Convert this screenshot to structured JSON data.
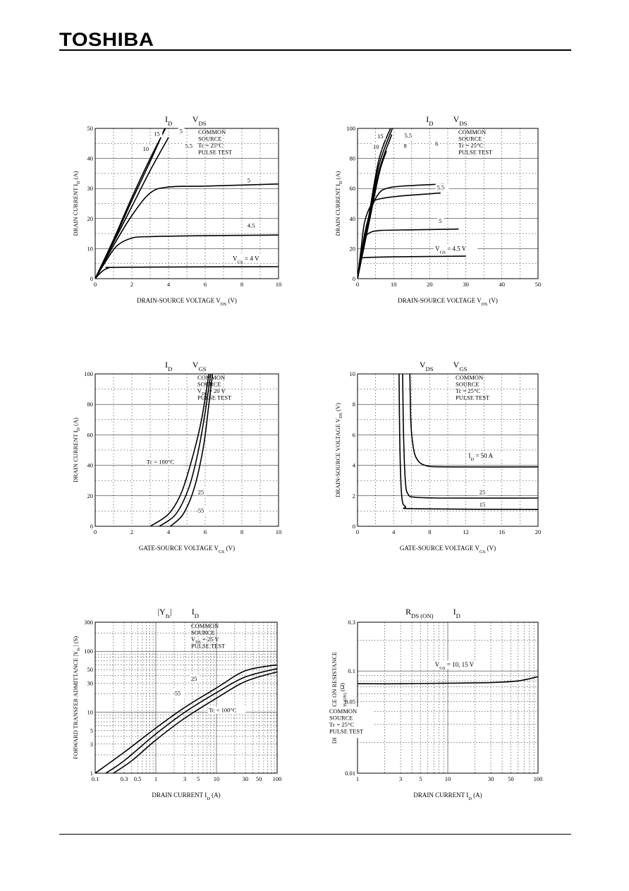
{
  "header": {
    "brand": "TOSHIBA"
  },
  "colors": {
    "ink": "#000000",
    "paper": "#ffffff"
  },
  "charts": [
    {
      "id": "c1",
      "title_left": "I",
      "title_left_sub": "D",
      "title_right": "V",
      "title_right_sub": "DS",
      "xlabel": "DRAIN-SOURCE  VOLTAGE   V",
      "xlabel_sub": "DS",
      "xlabel_unit": "(V)",
      "ylabel": "DRAIN CURRENT   I",
      "ylabel_sub": "D",
      "ylabel_unit": "(A)",
      "xticks": [
        0,
        2,
        4,
        6,
        8,
        10
      ],
      "yticks": [
        0,
        10,
        20,
        30,
        40,
        50
      ],
      "x_scale": "linear",
      "xlim": [
        0,
        10
      ],
      "y_scale": "linear",
      "ylim": [
        0,
        50
      ],
      "legend": [
        "COMMON",
        "SOURCE",
        "Tc = 25°C",
        "PULSE TEST"
      ],
      "series": [
        {
          "label": "10",
          "points": [
            [
              0,
              0
            ],
            [
              1,
              13
            ],
            [
              2,
              27
            ],
            [
              3,
              40
            ],
            [
              4,
              52
            ]
          ]
        },
        {
          "label": "5",
          "points": [
            [
              0,
              0
            ],
            [
              1,
              12.5
            ],
            [
              2,
              26
            ],
            [
              3,
              39
            ],
            [
              3.8,
              50
            ]
          ]
        },
        {
          "label": "5.5",
          "points": [
            [
              0,
              0
            ],
            [
              1,
              12
            ],
            [
              2,
              24
            ],
            [
              3,
              36
            ],
            [
              4,
              47
            ]
          ]
        },
        {
          "label": "5",
          "points": [
            [
              0,
              0
            ],
            [
              1,
              11
            ],
            [
              2,
              21
            ],
            [
              3,
              28.5
            ],
            [
              4,
              30.5
            ],
            [
              6,
              30.8
            ],
            [
              10,
              31.5
            ]
          ]
        },
        {
          "label": "4.5",
          "points": [
            [
              0,
              0
            ],
            [
              0.6,
              6
            ],
            [
              1.2,
              11
            ],
            [
              2,
              13.5
            ],
            [
              3,
              14
            ],
            [
              6,
              14.3
            ],
            [
              10,
              14.5
            ]
          ]
        },
        {
          "label": "V_GS = 4 V",
          "points": [
            [
              0,
              0
            ],
            [
              0.3,
              2
            ],
            [
              0.7,
              3.5
            ],
            [
              1.5,
              3.8
            ],
            [
              10,
              4
            ]
          ]
        }
      ],
      "annotations": [
        {
          "text": "15",
          "x": 3.2,
          "y": 47.5
        },
        {
          "text": "5",
          "x": 4.6,
          "y": 48.5
        },
        {
          "text": "10",
          "x": 2.6,
          "y": 42.5
        },
        {
          "text": "5.5",
          "x": 4.9,
          "y": 43.5
        },
        {
          "text": "5",
          "x": 8.3,
          "y": 32
        },
        {
          "text": "4.5",
          "x": 8.3,
          "y": 17
        },
        {
          "text": "V",
          "x": 7.5,
          "y": 6
        }
      ]
    },
    {
      "id": "c2",
      "title_left": "I",
      "title_left_sub": "D",
      "title_right": "V",
      "title_right_sub": "DS",
      "xlabel": "DRAIN-SOURCE  VOLTAGE   V",
      "xlabel_sub": "DS",
      "xlabel_unit": "(V)",
      "ylabel": "DRAIN CURRENT   I",
      "ylabel_sub": "D",
      "ylabel_unit": "(A)",
      "xticks": [
        0,
        10,
        20,
        30,
        40,
        50
      ],
      "yticks": [
        0,
        20,
        40,
        60,
        80,
        100
      ],
      "x_scale": "linear",
      "xlim": [
        0,
        50
      ],
      "y_scale": "linear",
      "ylim": [
        0,
        100
      ],
      "legend": [
        "COMMON",
        "SOURCE",
        "Tc = 25°C",
        "PULSE TEST"
      ],
      "series": [
        {
          "label": "15",
          "points": [
            [
              0,
              0
            ],
            [
              3,
              40
            ],
            [
              6,
              80
            ],
            [
              9.5,
              102
            ]
          ]
        },
        {
          "label": "5.5",
          "points": [
            [
              0,
              0
            ],
            [
              3,
              38
            ],
            [
              6,
              76
            ],
            [
              10,
              102
            ]
          ]
        },
        {
          "label": "10",
          "points": [
            [
              0,
              0
            ],
            [
              3,
              36
            ],
            [
              6,
              72
            ],
            [
              9.5,
              96
            ]
          ]
        },
        {
          "label": "8",
          "points": [
            [
              0,
              0
            ],
            [
              3,
              35
            ],
            [
              6,
              70
            ],
            [
              8,
              85
            ]
          ]
        },
        {
          "label": "6",
          "points": [
            [
              0,
              0
            ],
            [
              2,
              30
            ],
            [
              4,
              48
            ],
            [
              6,
              57
            ],
            [
              8,
              60
            ],
            [
              12,
              61.5
            ],
            [
              24,
              63
            ]
          ]
        },
        {
          "label": "5.5",
          "points": [
            [
              0,
              0
            ],
            [
              1,
              20
            ],
            [
              2,
              38
            ],
            [
              4,
              50
            ],
            [
              6,
              53
            ],
            [
              12,
              55
            ],
            [
              23,
              57
            ]
          ]
        },
        {
          "label": "5",
          "points": [
            [
              0,
              0
            ],
            [
              1,
              16
            ],
            [
              2,
              26
            ],
            [
              3,
              30
            ],
            [
              6,
              32
            ],
            [
              15,
              32.5
            ],
            [
              28,
              33
            ]
          ]
        },
        {
          "label": "V_GS = 4.5 V",
          "points": [
            [
              0,
              0
            ],
            [
              0.5,
              8
            ],
            [
              1,
              13
            ],
            [
              2,
              14
            ],
            [
              10,
              14.5
            ],
            [
              30,
              15
            ]
          ]
        }
      ],
      "annotations": [
        {
          "text": "15",
          "x": 5.5,
          "y": 93.5
        },
        {
          "text": "5.5",
          "x": 13,
          "y": 94
        },
        {
          "text": "10",
          "x": 4.3,
          "y": 86.5
        },
        {
          "text": "8",
          "x": 12.8,
          "y": 87
        },
        {
          "text": "6",
          "x": 21.5,
          "y": 88.5
        },
        {
          "text": "5.5",
          "x": 22,
          "y": 59.5
        },
        {
          "text": "5",
          "x": 22.5,
          "y": 37
        },
        {
          "text": "V",
          "x": 21.5,
          "y": 18.5
        }
      ]
    },
    {
      "id": "c3",
      "title_left": "I",
      "title_left_sub": "D",
      "title_right": "V",
      "title_right_sub": "GS",
      "xlabel": "GATE-SOURCE  VOLTAGE   V",
      "xlabel_sub": "GS",
      "xlabel_unit": "(V)",
      "ylabel": "DRAIN CURRENT   I",
      "ylabel_sub": "D",
      "ylabel_unit": "(A)",
      "xticks": [
        0,
        2,
        4,
        6,
        8,
        10
      ],
      "yticks": [
        0,
        20,
        40,
        60,
        80,
        100
      ],
      "x_scale": "linear",
      "xlim": [
        0,
        10
      ],
      "y_scale": "linear",
      "ylim": [
        0,
        100
      ],
      "legend": [
        "COMMON",
        "SOURCE",
        "V_DS = 20 V",
        "PULSE TEST"
      ],
      "series": [
        {
          "label": "Tc = 100°C",
          "points": [
            [
              3,
              0
            ],
            [
              4,
              8
            ],
            [
              4.7,
              22
            ],
            [
              5.3,
              45
            ],
            [
              5.8,
              70
            ],
            [
              6.2,
              100
            ]
          ]
        },
        {
          "label": "25",
          "points": [
            [
              3.5,
              0
            ],
            [
              4.4,
              8
            ],
            [
              5.1,
              25
            ],
            [
              5.6,
              48
            ],
            [
              6,
              75
            ],
            [
              6.3,
              100
            ]
          ]
        },
        {
          "label": "-55",
          "points": [
            [
              4.1,
              0
            ],
            [
              4.8,
              8
            ],
            [
              5.4,
              25
            ],
            [
              5.9,
              52
            ],
            [
              6.2,
              80
            ],
            [
              6.4,
              100
            ]
          ]
        }
      ],
      "annotations": [
        {
          "text": "Tc = 100°C",
          "x": 2.8,
          "y": 41
        },
        {
          "text": "25",
          "x": 5.6,
          "y": 21
        },
        {
          "text": "-55",
          "x": 5.5,
          "y": 9
        }
      ]
    },
    {
      "id": "c4",
      "title_left": "V",
      "title_left_sub": "DS",
      "title_right": "V",
      "title_right_sub": "GS",
      "xlabel": "GATE-SOURCE  VOLTAGE   V",
      "xlabel_sub": "GS",
      "xlabel_unit": "(V)",
      "ylabel": "DRAIN-SOURCE VOLTAGE   V",
      "ylabel_sub": "DS",
      "ylabel_unit": "(V)",
      "xticks": [
        0,
        4,
        8,
        12,
        16,
        20
      ],
      "yticks": [
        0,
        2,
        4,
        6,
        8,
        10
      ],
      "x_scale": "linear",
      "xlim": [
        0,
        20
      ],
      "y_scale": "linear",
      "ylim": [
        0,
        10
      ],
      "legend": [
        "COMMON",
        "SOURCE",
        "Tc = 25°C",
        "PULSE TEST"
      ],
      "series": [
        {
          "label": "I_D = 50 A",
          "points": [
            [
              5.8,
              10
            ],
            [
              5.9,
              7
            ],
            [
              6.1,
              5.5
            ],
            [
              6.5,
              4.5
            ],
            [
              7.5,
              4
            ],
            [
              10,
              3.9
            ],
            [
              20,
              3.9
            ]
          ]
        },
        {
          "label": "25",
          "points": [
            [
              5,
              10
            ],
            [
              5.1,
              6
            ],
            [
              5.3,
              3
            ],
            [
              5.6,
              2.1
            ],
            [
              6.5,
              1.9
            ],
            [
              10,
              1.85
            ],
            [
              20,
              1.85
            ]
          ]
        },
        {
          "label": "15",
          "points": [
            [
              4.6,
              10
            ],
            [
              4.7,
              5
            ],
            [
              4.9,
              2
            ],
            [
              5.3,
              1.3
            ],
            [
              6.5,
              1.15
            ],
            [
              20,
              1.1
            ]
          ]
        }
      ],
      "annotations": [
        {
          "text": "I",
          "x": 12.3,
          "y": 4.5
        },
        {
          "text": "25",
          "x": 13.5,
          "y": 2.1
        },
        {
          "text": "15",
          "x": 13.5,
          "y": 1.3
        }
      ]
    },
    {
      "id": "c5",
      "title_left": "|Y",
      "title_left_sub": "fs",
      "title_left_suffix": "|",
      "title_right": "I",
      "title_right_sub": "D",
      "xlabel": "DRAIN CURRENT   I",
      "xlabel_sub": "D",
      "xlabel_unit": "(A)",
      "ylabel": "FORWARD TRANSFER ADMITTANCE   |Y",
      "ylabel_sub": "fs",
      "ylabel_unit": "|   (S)",
      "xticks": [
        0.1,
        0.3,
        0.5,
        1,
        3,
        5,
        10,
        30,
        50,
        100
      ],
      "xtick_labels": [
        "0.1",
        "0.3",
        "0.5",
        "1",
        "3",
        "5",
        "10",
        "30",
        "50",
        "100"
      ],
      "yticks": [
        1,
        3,
        5,
        10,
        30,
        50,
        100,
        300
      ],
      "ytick_labels": [
        "1",
        "3",
        "5",
        "10",
        "30",
        "50",
        "100",
        "300"
      ],
      "x_scale": "log",
      "xlim": [
        0.1,
        100
      ],
      "y_scale": "log",
      "ylim": [
        1,
        300
      ],
      "legend": [
        "COMMON",
        "SOURCE",
        "V_DS = 25 V",
        "PULSE TEST"
      ],
      "series": [
        {
          "label": "-55",
          "points": [
            [
              0.1,
              1
            ],
            [
              0.3,
              2.2
            ],
            [
              1,
              5.5
            ],
            [
              3,
              12
            ],
            [
              10,
              25
            ],
            [
              30,
              48
            ],
            [
              100,
              60
            ]
          ]
        },
        {
          "label": "25",
          "points": [
            [
              0.15,
              1
            ],
            [
              0.3,
              1.6
            ],
            [
              1,
              4.4
            ],
            [
              3,
              10
            ],
            [
              10,
              21
            ],
            [
              30,
              38
            ],
            [
              100,
              52
            ]
          ]
        },
        {
          "label": "Tc = 100°C",
          "points": [
            [
              0.2,
              1
            ],
            [
              0.4,
              1.6
            ],
            [
              1,
              3.5
            ],
            [
              3,
              8
            ],
            [
              10,
              17
            ],
            [
              30,
              32
            ],
            [
              100,
              46
            ]
          ]
        }
      ],
      "annotations": [
        {
          "text": "25",
          "x": 3.8,
          "y": 33
        },
        {
          "text": "-55",
          "x": 1.9,
          "y": 19
        },
        {
          "text": "Tc = 100°C",
          "x": 7.5,
          "y": 10
        }
      ]
    },
    {
      "id": "c6",
      "title_left": "R",
      "title_left_sub": "DS (ON)",
      "title_right": "I",
      "title_right_sub": "D",
      "xlabel": "DRAIN CURRENT   I",
      "xlabel_sub": "D",
      "xlabel_unit": "(A)",
      "ylabel": "DRAIN-SOURCE ON RESISTANCE",
      "ylabel2": "R",
      "ylabel2_sub": "DS (ON)",
      "ylabel2_unit": "(Ω)",
      "xticks": [
        1,
        3,
        5,
        10,
        30,
        50,
        100
      ],
      "xtick_labels": [
        "1",
        "3",
        "5",
        "10",
        "30",
        "50",
        "100"
      ],
      "yticks": [
        0.01,
        0.03,
        0.05,
        0.1,
        0.3
      ],
      "ytick_labels": [
        "0.01",
        "0.03",
        "0.05",
        "0.1",
        "0.3"
      ],
      "x_scale": "log",
      "xlim": [
        1,
        100
      ],
      "y_scale": "log",
      "ylim": [
        0.01,
        0.3
      ],
      "legend": [
        "COMMON",
        "SOURCE",
        "Tc = 25°C",
        "PULSE TEST"
      ],
      "legend_position": "bottom-left",
      "series": [
        {
          "label": "V_GS = 10, 15 V",
          "points": [
            [
              1,
              0.075
            ],
            [
              3,
              0.075
            ],
            [
              10,
              0.076
            ],
            [
              30,
              0.077
            ],
            [
              60,
              0.08
            ],
            [
              100,
              0.088
            ]
          ]
        }
      ],
      "annotations": [
        {
          "text": "V",
          "x": 7.2,
          "y": 0.11
        }
      ]
    }
  ],
  "inline_labels": {
    "c1_vgs": "V",
    "c1_vgs_sub": "GS",
    "c1_vgs_tail": " = 4 V",
    "c2_vgs": "V",
    "c2_vgs_sub": "GS",
    "c2_vgs_tail": " = 4.5 V",
    "c4_id": "I",
    "c4_id_sub": "D",
    "c4_id_tail": " = 50 A",
    "c6_vgs": "V",
    "c6_vgs_sub": "GS",
    "c6_vgs_tail": " = 10, 15 V",
    "c3_vds_legend": "V",
    "c3_vds_legend_sub": "DS",
    "c3_vds_legend_tail": " = 20 V",
    "c5_vds_legend": "V",
    "c5_vds_legend_sub": "DS",
    "c5_vds_legend_tail": " = 25V"
  }
}
